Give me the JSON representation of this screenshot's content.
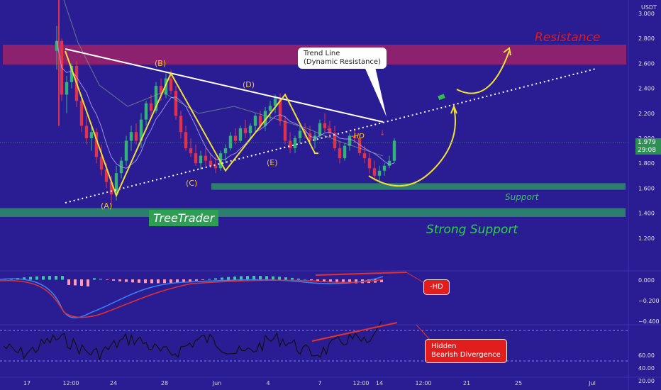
{
  "chart_data": [
    {
      "type": "candlestick",
      "name_shown": "USDT",
      "y_ticks": [
        "3.000",
        "2.800",
        "2.600",
        "2.400",
        "2.200",
        "2.000",
        "1.800",
        "1.600",
        "1.400",
        "1.200"
      ],
      "x_ticks": [
        "17",
        "12:00",
        "24",
        "28",
        "Jun",
        "4",
        "7",
        "12:00",
        "14",
        "12:00",
        "21",
        "25",
        "Jul"
      ],
      "last_price": "1.979",
      "countdown": "29:08",
      "annotations": {
        "resistance": "Resistance",
        "support": "Support",
        "strong_support": "Strong Support",
        "trend_line": "Trend Line\n(Dynamic Resistance)",
        "hd_label": "-HD",
        "wave_labels": [
          "(A)",
          "(B)",
          "(C)",
          "(D)",
          "(E)"
        ]
      },
      "brand": "TreeTrader",
      "wave_points": [
        {
          "label": "(A)",
          "t": 12,
          "price": 1.54
        },
        {
          "label": "(B)",
          "t": 23,
          "price": 2.52
        },
        {
          "label": "(C)",
          "t": 34,
          "price": 1.74
        },
        {
          "label": "(D)",
          "t": 46,
          "price": 2.35
        },
        {
          "label": "(E)",
          "t": 52,
          "price": 1.88
        }
      ],
      "zones": {
        "resistance": [
          2.59,
          2.75
        ],
        "support": [
          1.61,
          1.64
        ],
        "strong_support": [
          1.37,
          1.44
        ]
      },
      "candles": [
        [
          2.7,
          2.9,
          2.55,
          2.78
        ],
        [
          2.78,
          2.8,
          2.3,
          2.35
        ],
        [
          2.35,
          2.5,
          2.2,
          2.45
        ],
        [
          2.45,
          2.6,
          2.4,
          2.58
        ],
        [
          2.58,
          2.62,
          2.25,
          2.3
        ],
        [
          2.3,
          2.35,
          2.05,
          2.1
        ],
        [
          2.1,
          2.18,
          1.95,
          2.0
        ],
        [
          2.0,
          2.1,
          1.9,
          2.05
        ],
        [
          2.05,
          2.08,
          1.8,
          1.85
        ],
        [
          1.85,
          1.95,
          1.7,
          1.75
        ],
        [
          1.75,
          1.8,
          1.6,
          1.65
        ],
        [
          1.65,
          1.7,
          1.45,
          1.55
        ],
        [
          1.55,
          1.78,
          1.5,
          1.72
        ],
        [
          1.72,
          1.85,
          1.68,
          1.82
        ],
        [
          1.82,
          2.02,
          1.78,
          1.98
        ],
        [
          1.98,
          2.1,
          1.9,
          2.05
        ],
        [
          2.05,
          2.12,
          1.95,
          1.98
        ],
        [
          1.98,
          2.2,
          1.92,
          2.15
        ],
        [
          2.15,
          2.3,
          2.1,
          2.28
        ],
        [
          2.28,
          2.35,
          2.18,
          2.22
        ],
        [
          2.22,
          2.45,
          2.2,
          2.42
        ],
        [
          2.42,
          2.48,
          2.3,
          2.35
        ],
        [
          2.35,
          2.52,
          2.32,
          2.48
        ],
        [
          2.48,
          2.55,
          2.35,
          2.38
        ],
        [
          2.38,
          2.42,
          2.15,
          2.18
        ],
        [
          2.18,
          2.22,
          2.0,
          2.05
        ],
        [
          2.05,
          2.1,
          1.9,
          1.92
        ],
        [
          1.92,
          2.0,
          1.85,
          1.88
        ],
        [
          1.88,
          1.95,
          1.78,
          1.8
        ],
        [
          1.8,
          1.9,
          1.75,
          1.86
        ],
        [
          1.86,
          1.92,
          1.78,
          1.82
        ],
        [
          1.82,
          1.88,
          1.76,
          1.78
        ],
        [
          1.78,
          1.85,
          1.72,
          1.76
        ],
        [
          1.76,
          1.9,
          1.74,
          1.88
        ],
        [
          1.88,
          1.95,
          1.8,
          1.92
        ],
        [
          1.92,
          2.05,
          1.9,
          2.02
        ],
        [
          2.02,
          2.08,
          1.95,
          1.98
        ],
        [
          1.98,
          2.1,
          1.96,
          2.08
        ],
        [
          2.08,
          2.15,
          2.0,
          2.04
        ],
        [
          2.04,
          2.12,
          2.0,
          2.1
        ],
        [
          2.1,
          2.2,
          2.05,
          2.18
        ],
        [
          2.18,
          2.22,
          2.08,
          2.1
        ],
        [
          2.1,
          2.25,
          2.06,
          2.22
        ],
        [
          2.22,
          2.3,
          2.15,
          2.26
        ],
        [
          2.26,
          2.35,
          2.2,
          2.32
        ],
        [
          2.32,
          2.36,
          2.1,
          2.14
        ],
        [
          2.14,
          2.18,
          1.95,
          1.98
        ],
        [
          1.98,
          2.05,
          1.88,
          1.92
        ],
        [
          1.92,
          2.02,
          1.88,
          2.0
        ],
        [
          2.0,
          2.1,
          1.96,
          2.06
        ],
        [
          2.06,
          2.12,
          2.0,
          2.04
        ],
        [
          2.04,
          2.1,
          1.95,
          1.98
        ],
        [
          1.98,
          2.05,
          1.92,
          2.02
        ],
        [
          2.02,
          2.15,
          2.0,
          2.12
        ],
        [
          2.12,
          2.2,
          2.05,
          2.08
        ],
        [
          2.08,
          2.14,
          2.0,
          2.04
        ],
        [
          2.04,
          2.1,
          1.9,
          1.92
        ],
        [
          1.92,
          1.98,
          1.8,
          1.84
        ],
        [
          1.84,
          1.96,
          1.82,
          1.94
        ],
        [
          1.94,
          2.04,
          1.9,
          2.02
        ],
        [
          2.02,
          2.08,
          1.96,
          2.0
        ],
        [
          2.0,
          2.04,
          1.86,
          1.88
        ],
        [
          1.88,
          1.94,
          1.8,
          1.84
        ],
        [
          1.84,
          1.88,
          1.72,
          1.76
        ],
        [
          1.76,
          1.82,
          1.66,
          1.7
        ],
        [
          1.7,
          1.78,
          1.64,
          1.74
        ],
        [
          1.74,
          1.8,
          1.7,
          1.78
        ],
        [
          1.78,
          1.86,
          1.76,
          1.82
        ],
        [
          1.82,
          2.0,
          1.8,
          1.98
        ]
      ],
      "macd": {
        "y_ticks": [
          "0.000",
          "−0.200",
          "−0.400"
        ],
        "label": "-HD"
      },
      "rsi": {
        "y_ticks": [
          "60.00",
          "40.00",
          "20.00"
        ],
        "label": "Hidden\nBearish Divergence"
      }
    }
  ]
}
